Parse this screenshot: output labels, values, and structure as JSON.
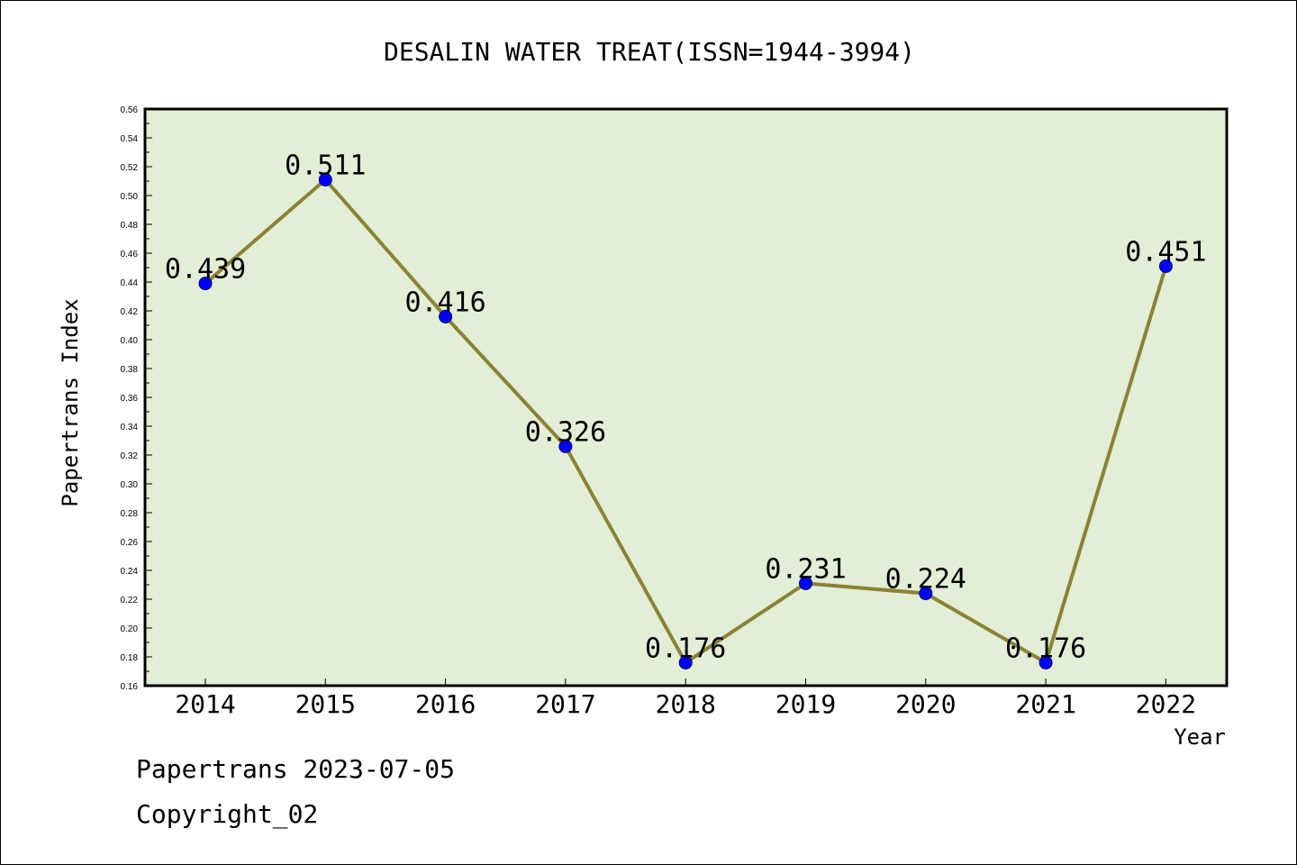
{
  "chart_data": {
    "type": "line",
    "title": "DESALIN WATER TREAT(ISSN=1944-3994)",
    "xlabel": "Year",
    "ylabel": "Papertrans Index",
    "categories": [
      "2014",
      "2015",
      "2016",
      "2017",
      "2018",
      "2019",
      "2020",
      "2021",
      "2022"
    ],
    "series": [
      {
        "values": [
          0.439,
          0.511,
          0.416,
          0.326,
          0.176,
          0.231,
          0.224,
          0.176,
          0.451
        ]
      }
    ],
    "data_labels": [
      "0.439",
      "0.511",
      "0.416",
      "0.326",
      "0.176",
      "0.231",
      "0.224",
      "0.176",
      "0.451"
    ],
    "ylim": [
      0.16,
      0.56
    ],
    "yticks": [
      "0.16",
      "0.18",
      "0.20",
      "0.22",
      "0.24",
      "0.26",
      "0.28",
      "0.30",
      "0.32",
      "0.34",
      "0.36",
      "0.38",
      "0.40",
      "0.42",
      "0.44",
      "0.46",
      "0.48",
      "0.50",
      "0.52",
      "0.54",
      "0.56"
    ],
    "grid": false,
    "colors": {
      "plot_background": "#e2efd6",
      "line": "#8b8236",
      "marker": "#0000ff",
      "axes": "#000000"
    }
  },
  "footer": {
    "line1": "Papertrans 2023-07-05",
    "line2": "Copyright_02"
  }
}
